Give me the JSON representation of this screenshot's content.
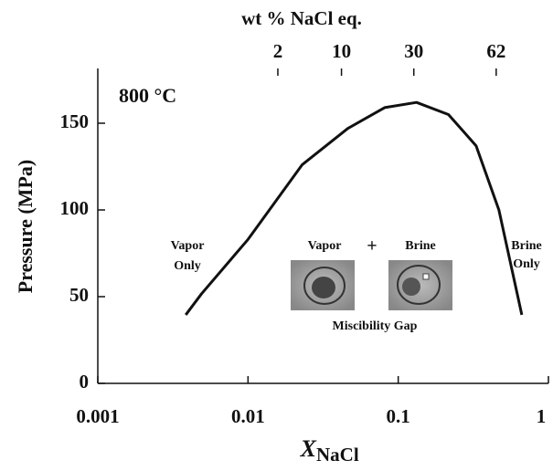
{
  "chart_data": {
    "type": "line",
    "y_label": "Pressure (MPa)",
    "x_label": "X",
    "x_label_sub": "NaCl",
    "x2_label": "wt  % NaCl eq.",
    "log_x": true,
    "x": [
      0.00385,
      0.0049,
      0.01,
      0.0229,
      0.0462,
      0.0812,
      0.1324,
      0.216,
      0.33,
      0.468,
      0.665
    ],
    "series": [
      {
        "name": "800 °C",
        "color": "#111111",
        "values": [
          39.5,
          51.6,
          83,
          126,
          147,
          159,
          162,
          155,
          137,
          100,
          39.5
        ]
      }
    ],
    "xlim": [
      0.001,
      1
    ],
    "xticks": [
      0.001,
      0.01,
      0.1,
      1
    ],
    "x2ticks": [
      {
        "value": 0.0158,
        "label": "2"
      },
      {
        "value": 0.0419,
        "label": "10"
      },
      {
        "value": 0.127,
        "label": "30"
      },
      {
        "value": 0.449,
        "label": "62"
      }
    ],
    "ylim": [
      0,
      180
    ],
    "yticks": [
      0,
      50,
      100,
      150
    ],
    "annotations": {
      "temperature": "800 °C",
      "vapor_only": [
        "Vapor",
        "Only"
      ],
      "vapor": "Vapor",
      "plus": "+",
      "brine": "Brine",
      "brine_only": [
        "Brine",
        "Only"
      ],
      "gap": "Miscibility Gap"
    }
  }
}
